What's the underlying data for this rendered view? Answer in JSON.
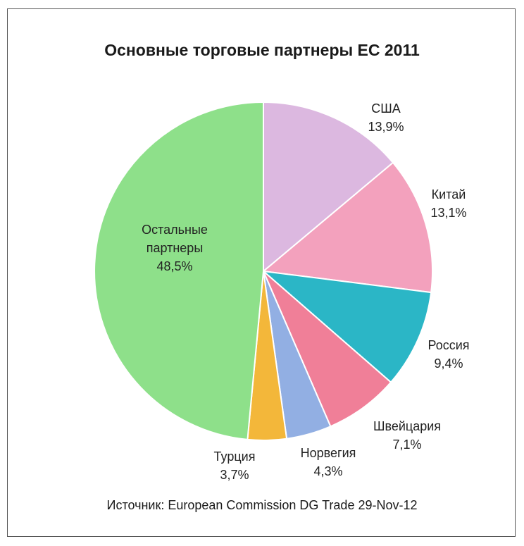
{
  "title": "Основные торговые партнеры ЕС 2011",
  "source": "Источник: European Commission DG Trade 29-Nov-12",
  "chart_data": {
    "type": "pie",
    "title": "Основные торговые партнеры ЕС 2011",
    "start_angle_deg": 0,
    "direction": "clockwise",
    "slices": [
      {
        "name": "США",
        "value": 13.9,
        "label": "13,9%",
        "color": "#dcb8e0"
      },
      {
        "name": "Китай",
        "value": 13.1,
        "label": "13,1%",
        "color": "#f3a1bd"
      },
      {
        "name": "Россия",
        "value": 9.4,
        "label": "9,4%",
        "color": "#2bb6c6"
      },
      {
        "name": "Швейцария",
        "value": 7.1,
        "label": "7,1%",
        "color": "#f07f98"
      },
      {
        "name": "Норвегия",
        "value": 4.3,
        "label": "4,3%",
        "color": "#92afe3"
      },
      {
        "name": "Турция",
        "value": 3.7,
        "label": "3,7%",
        "color": "#f3b73a"
      },
      {
        "name": "Остальные партнеры",
        "value": 48.5,
        "label": "48,5%",
        "color": "#8ee08a"
      }
    ]
  }
}
